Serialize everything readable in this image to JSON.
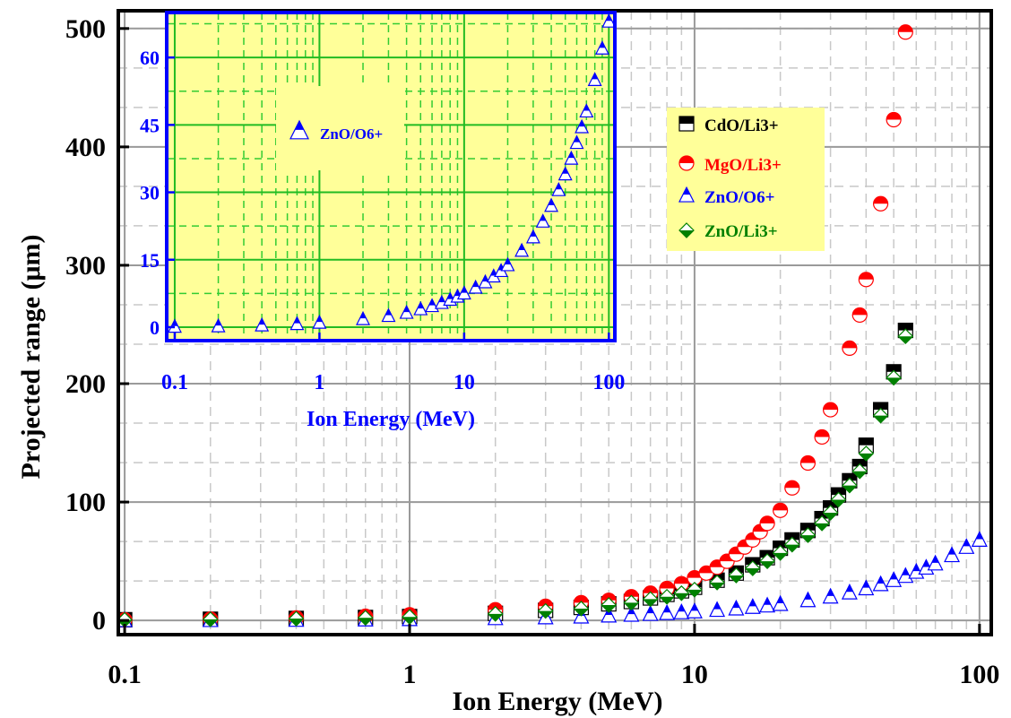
{
  "chart_data": [
    {
      "type": "scatter",
      "x_scale": "log",
      "xlabel": "Ion Energy (MeV)",
      "ylabel": "Projected range (μm)",
      "xlim": [
        0.095,
        110
      ],
      "ylim": [
        -12,
        515
      ],
      "x_ticks": [
        0.1,
        1,
        10,
        100
      ],
      "x_tick_labels": [
        "0.1",
        "1",
        "10",
        "100"
      ],
      "y_ticks": [
        0,
        100,
        200,
        300,
        400,
        500
      ],
      "y_tick_labels": [
        "0",
        "100",
        "200",
        "300",
        "400",
        "500"
      ],
      "grid": true,
      "legend_position": "right",
      "legend_background": "#ffff99",
      "series": [
        {
          "name": "CdO/Li3+",
          "color": "#000000",
          "marker": "square-half",
          "x": [
            0.1,
            0.2,
            0.4,
            0.7,
            1,
            2,
            3,
            4,
            5,
            6,
            7,
            8,
            9,
            10,
            12,
            14,
            16,
            18,
            20,
            22,
            25,
            28,
            30,
            32,
            35,
            38,
            40,
            45,
            50,
            55
          ],
          "y": [
            0.6,
            1.0,
            1.7,
            2.5,
            3.3,
            6.0,
            8.5,
            11,
            14,
            16,
            19,
            22,
            25,
            28,
            34,
            40,
            47,
            53,
            61,
            68,
            76,
            86,
            95,
            106,
            118,
            130,
            148,
            178,
            210,
            245
          ]
        },
        {
          "name": "MgO/Li3+",
          "color": "#ff0000",
          "marker": "circle-half",
          "x": [
            0.1,
            0.2,
            0.4,
            0.7,
            1,
            2,
            3,
            4,
            5,
            6,
            7,
            8,
            9,
            10,
            11,
            12,
            13,
            14,
            15,
            16,
            17,
            18,
            20,
            22,
            25,
            28,
            30,
            35,
            38,
            40,
            45,
            50,
            55
          ],
          "y": [
            0.5,
            1.1,
            2.1,
            3.5,
            4.8,
            9,
            12,
            15,
            17,
            20,
            23,
            27,
            31,
            36,
            40,
            45,
            50,
            56,
            62,
            68,
            75,
            82,
            93,
            112,
            133,
            155,
            178,
            230,
            258,
            288,
            352,
            423,
            497
          ]
        },
        {
          "name": "ZnO/O6+",
          "color": "#0000ff",
          "marker": "triangle-half",
          "x": [
            0.1,
            0.2,
            0.4,
            0.7,
            1,
            2,
            3,
            4,
            5,
            6,
            7,
            8,
            9,
            10,
            12,
            14,
            16,
            18,
            20,
            25,
            30,
            35,
            40,
            45,
            50,
            55,
            60,
            65,
            70,
            80,
            90,
            100
          ],
          "y": [
            0.1,
            0.2,
            0.4,
            0.7,
            1.0,
            1.8,
            2.5,
            3.2,
            4.0,
            4.7,
            5.4,
            6.1,
            6.8,
            7.5,
            8.8,
            10,
            11.3,
            12.5,
            13.8,
            17,
            20,
            23.5,
            27,
            30.5,
            34,
            37.5,
            41,
            44.5,
            48,
            55,
            62,
            68
          ]
        },
        {
          "name": "ZnO/Li3+",
          "color": "#008000",
          "marker": "diamond-half",
          "x": [
            0.1,
            0.2,
            0.4,
            0.7,
            1,
            2,
            3,
            4,
            5,
            6,
            7,
            8,
            9,
            10,
            12,
            14,
            16,
            18,
            20,
            22,
            25,
            28,
            30,
            32,
            35,
            38,
            40,
            45,
            50,
            55
          ],
          "y": [
            0.5,
            0.9,
            1.5,
            2.2,
            3.0,
            5.5,
            8,
            10,
            13,
            15,
            18,
            20,
            23,
            26,
            32,
            38,
            44,
            50,
            57,
            64,
            72,
            82,
            91,
            102,
            114,
            126,
            141,
            173,
            205,
            240
          ]
        }
      ]
    },
    {
      "type": "scatter",
      "x_scale": "log",
      "xlabel": "Ion Energy (MeV)",
      "ylabel": "",
      "xlim": [
        0.088,
        110
      ],
      "ylim": [
        -3,
        70
      ],
      "x_ticks": [
        0.1,
        1,
        10,
        100
      ],
      "x_tick_labels": [
        "0.1",
        "1",
        "10",
        "100"
      ],
      "y_ticks": [
        0,
        15,
        30,
        45,
        60
      ],
      "y_tick_labels": [
        "0",
        "15",
        "30",
        "45",
        "60"
      ],
      "grid": true,
      "background": "#ffff99",
      "border_color": "#0000ff",
      "legend_position": "top-left",
      "series": [
        {
          "name": "ZnO/O6+",
          "color": "#0000ff",
          "marker": "triangle-half",
          "x": [
            0.1,
            0.2,
            0.4,
            0.7,
            1,
            2,
            3,
            4,
            5,
            6,
            7,
            8,
            9,
            10,
            12,
            14,
            16,
            18,
            20,
            25,
            30,
            35,
            40,
            45,
            50,
            55,
            60,
            65,
            70,
            80,
            90,
            100
          ],
          "y": [
            0.1,
            0.2,
            0.4,
            0.7,
            1.0,
            1.8,
            2.5,
            3.2,
            4.0,
            4.7,
            5.4,
            6.1,
            6.8,
            7.5,
            8.8,
            10,
            11.3,
            12.5,
            13.8,
            17,
            20,
            23.5,
            27,
            30.5,
            34,
            37.5,
            41,
            44.5,
            48,
            55,
            62,
            68
          ]
        }
      ]
    }
  ]
}
